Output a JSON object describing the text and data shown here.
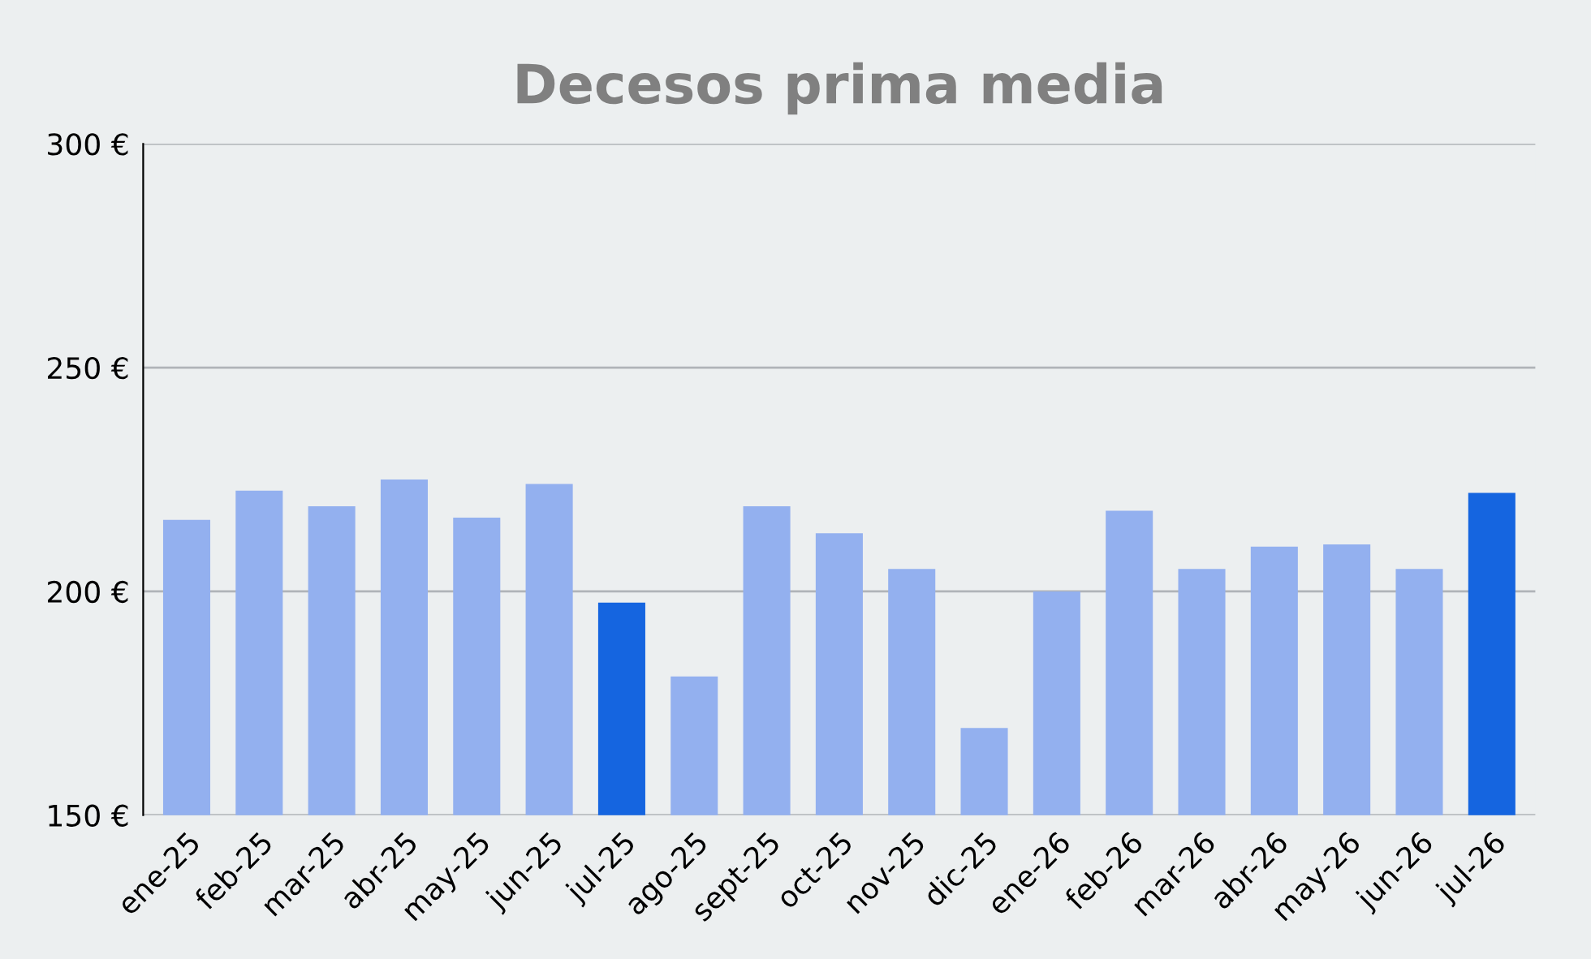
{
  "chart_data": {
    "type": "bar",
    "title": "Decesos prima media",
    "categories": [
      "ene-25",
      "feb-25",
      "mar-25",
      "abr-25",
      "may-25",
      "jun-25",
      "jul-25",
      "ago-25",
      "sept-25",
      "oct-25",
      "nov-25",
      "dic-25",
      "ene-26",
      "feb-26",
      "mar-26",
      "abr-26",
      "may-26",
      "jun-26",
      "jul-26"
    ],
    "values": [
      216,
      222.5,
      219,
      225,
      216.5,
      224,
      197.5,
      181,
      219,
      213,
      205,
      169.5,
      200,
      218,
      205,
      210,
      210.5,
      205,
      222
    ],
    "colors": [
      "#93b0ef",
      "#93b0ef",
      "#93b0ef",
      "#93b0ef",
      "#93b0ef",
      "#93b0ef",
      "#1565e0",
      "#93b0ef",
      "#93b0ef",
      "#93b0ef",
      "#93b0ef",
      "#93b0ef",
      "#93b0ef",
      "#93b0ef",
      "#93b0ef",
      "#93b0ef",
      "#93b0ef",
      "#93b0ef",
      "#1565e0"
    ],
    "ylim": [
      150,
      300
    ],
    "yticks": [
      {
        "value": 150,
        "label": "150 €"
      },
      {
        "value": 200,
        "label": "200 €"
      },
      {
        "value": 250,
        "label": "250 €"
      },
      {
        "value": 300,
        "label": "300 €"
      }
    ],
    "grid": "y",
    "legend": false
  }
}
